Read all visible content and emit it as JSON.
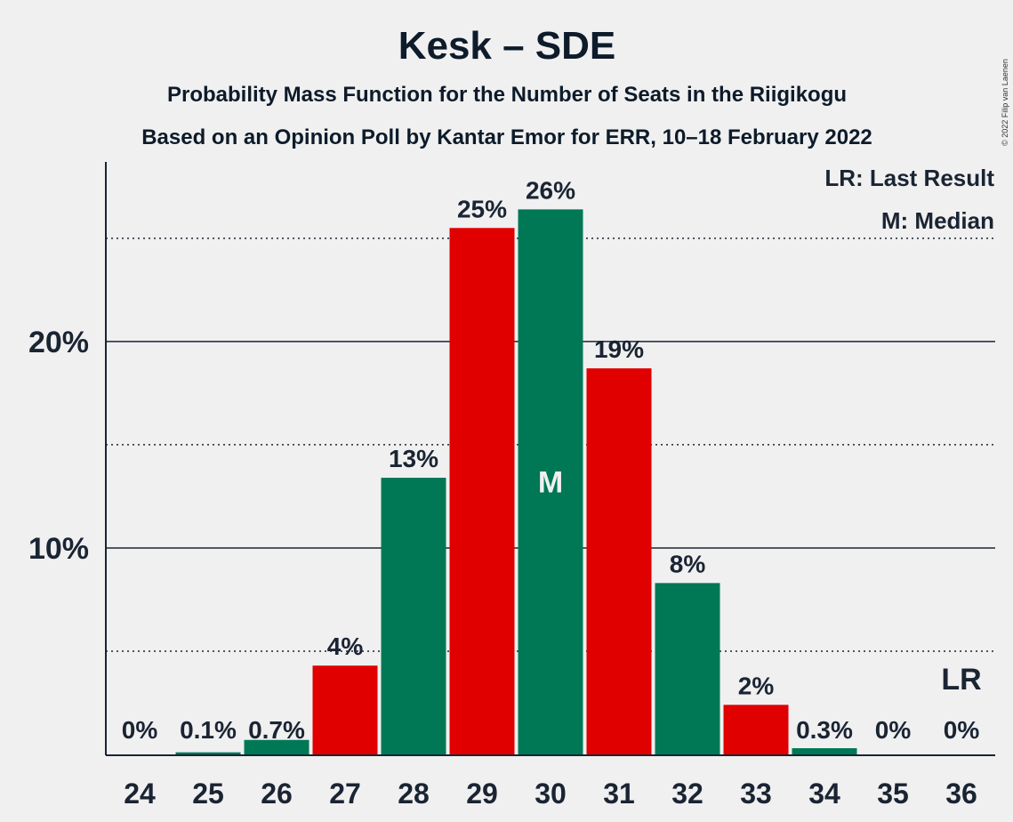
{
  "copyright": "© 2022 Filip van Laenen",
  "chart_data": {
    "type": "bar",
    "title": "Kesk – SDE",
    "subtitle1": "Probability Mass Function for the Number of Seats in the Riigikogu",
    "subtitle2": "Based on an Opinion Poll by Kantar Emor for ERR, 10–18 February 2022",
    "xlabel": "",
    "ylabel": "",
    "ylim": [
      0,
      28.7
    ],
    "yticks": [
      {
        "value": 10,
        "label": "10%"
      },
      {
        "value": 20,
        "label": "20%"
      }
    ],
    "minor_gridlines": [
      5,
      15,
      25
    ],
    "categories": [
      "24",
      "25",
      "26",
      "27",
      "28",
      "29",
      "30",
      "31",
      "32",
      "33",
      "34",
      "35",
      "36"
    ],
    "values": [
      0,
      0.1,
      0.7,
      4.3,
      13.4,
      25.5,
      26.4,
      18.7,
      8.3,
      2.4,
      0.3,
      0,
      0
    ],
    "labels": [
      "0%",
      "0.1%",
      "0.7%",
      "4%",
      "13%",
      "25%",
      "26%",
      "19%",
      "8%",
      "2%",
      "0.3%",
      "0%",
      "0%"
    ],
    "colors": [
      "#d60b00",
      "#007755",
      "#007755",
      "#e00000",
      "#007755",
      "#e00000",
      "#007755",
      "#e00000",
      "#007755",
      "#e00000",
      "#007755",
      "#e00000",
      "#007755"
    ],
    "median_index": 6,
    "median_marker": "M",
    "last_result_index": 12,
    "last_result_marker": "LR",
    "legend": [
      "LR: Last Result",
      "M: Median"
    ]
  }
}
